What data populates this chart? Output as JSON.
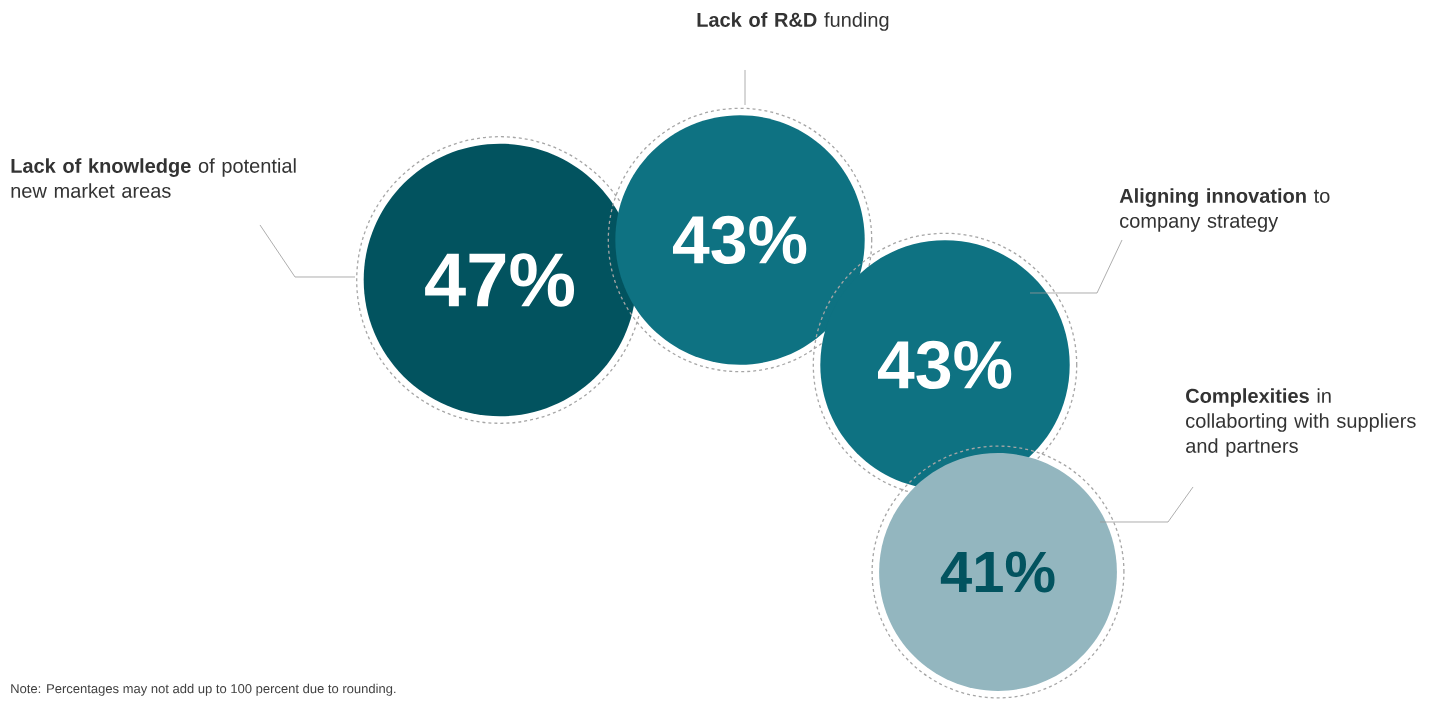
{
  "chart_data": {
    "type": "other",
    "categories": [
      "**Lack of knowledge** of potential new market areas",
      "**Lack of R&D** funding",
      "**Aligning innovation** to company strategy",
      "**Complexities** in collaborting with suppliers and partners"
    ],
    "values": [
      47,
      43,
      43,
      41
    ],
    "value_labels": [
      "47%",
      "43%",
      "43%",
      "41%"
    ],
    "colors": [
      "#02535f",
      "#0e7282",
      "#0e7282",
      "#93b6bf"
    ],
    "annotations": [
      "Note: Percentages may not add up to 100 percent due to rounding."
    ]
  }
}
